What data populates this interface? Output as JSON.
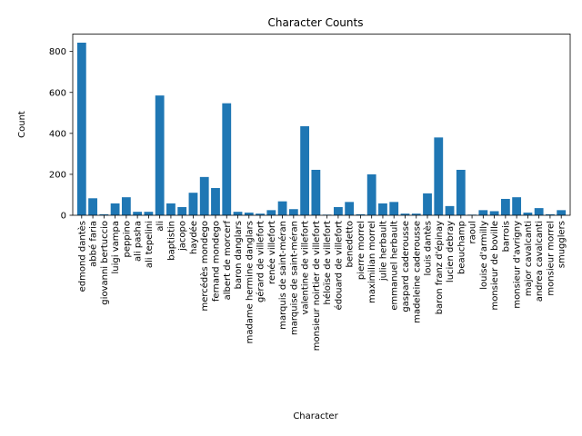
{
  "chart_data": {
    "type": "bar",
    "title": "Character Counts",
    "xlabel": "Character",
    "ylabel": "Count",
    "ylim": [
      0,
      885
    ],
    "yticks": [
      0,
      200,
      400,
      600,
      800
    ],
    "bar_color": "#1f77b4",
    "grid": false,
    "categories": [
      "edmond dantès",
      "abbé faria",
      "giovanni bertuccio",
      "luigi vampa",
      "peppino",
      "ali pasha",
      "ali tepelini",
      "ali",
      "baptistin",
      "jacopo",
      "haydée",
      "mercédès mondego",
      "fernand mondego",
      "albert de morcerf",
      "baron danglars",
      "madame hermine danglars",
      "gérard de villefort",
      "renée villefort",
      "marquis de saint-méran",
      "marquise de saint-méran",
      "valentine de villefort",
      "monsieur noirtier de villefort",
      "héloïse de villefort",
      "édouard de villefort",
      "benedetto",
      "pierre morrel",
      "maximilian morrel",
      "julie herbault",
      "emmanuel herbault",
      "gaspard caderousse",
      "madeleine caderousse",
      "louis dantès",
      "baron franz d'épinay",
      "lucien debray",
      "beauchamp",
      "raoul",
      "louise d'armilly",
      "monsieur de boville",
      "barrois",
      "monsieur d'avrigny",
      "major cavalcanti",
      "andrea cavalcanti",
      "monsieur morrel",
      "smugglers"
    ],
    "values": [
      843,
      83,
      5,
      58,
      88,
      17,
      17,
      585,
      58,
      40,
      110,
      187,
      133,
      547,
      17,
      13,
      8,
      25,
      68,
      30,
      435,
      222,
      3,
      40,
      65,
      5,
      200,
      58,
      65,
      8,
      8,
      107,
      380,
      45,
      222,
      3,
      25,
      20,
      80,
      88,
      13,
      35,
      5,
      25
    ]
  }
}
